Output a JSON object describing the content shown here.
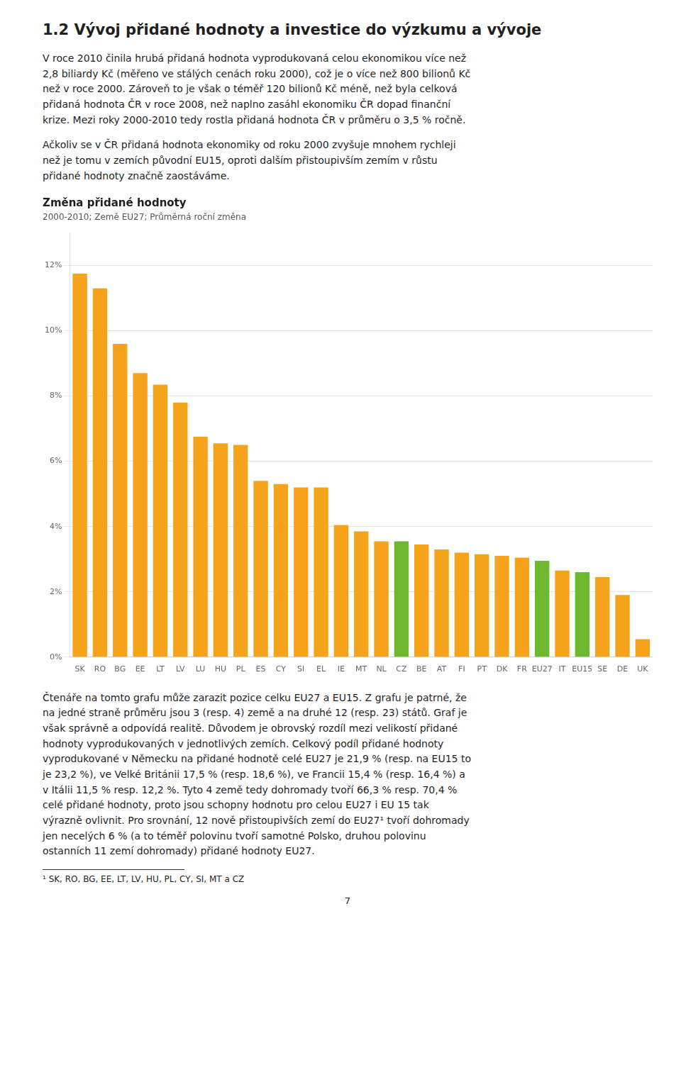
{
  "heading": "1.2 Vývoj přidané hodnoty a investice do výzkumu a vývoje",
  "para1": "V roce 2010 činila hrubá přidaná hodnota vyprodukovaná celou ekonomikou více než\n2,8 biliardy Kč (měřeno ve stálých cenách roku 2000), což je o více než 800 bilionů Kč\nnež v roce 2000. Zároveň to je však o téměř 120 bilionů Kč méně, než byla celková\npřidaná hodnota ČR v roce 2008, než naplno zasáhl ekonomiku ČR dopad finanční\nkrize. Mezi roky 2000-2010 tedy rostla přidaná hodnota ČR v průměru o 3,5 % ročně.",
  "para2": "Ačkoliv se v ČR přidaná hodnota ekonomiky od roku 2000 zvyšuje mnohem rychleji\nnež je tomu v zemích původní EU15, oproti dalším přistoupivším zemím v růstu\npřidané hodnoty značně zaostáváme.",
  "para3": "Čtenáře na tomto grafu může zarazit pozice celku EU27 a EU15. Z grafu je patrné, že\nna jedné straně průměru jsou 3 (resp. 4) země a na druhé 12 (resp. 23) států. Graf je\nvšak správně a odpovídá realitě. Důvodem je obrovský rozdíl mezi velikostí přidané\nhodnoty vyprodukovaných v jednotlivých zemích. Celkový podíl přidané hodnoty\nvyprodukované v Německu na přidané hodnotě celé EU27 je 21,9 % (resp. na EU15 to\nje 23,2 %), ve Velké Británii 17,5 % (resp. 18,6 %), ve Francii 15,4 % (resp. 16,4 %) a\nv Itálii 11,5 % resp. 12,2 %. Tyto 4 země tedy dohromady tvoří 66,3 % resp. 70,4 %\ncelé přidané hodnoty, proto jsou schopny hodnotu pro celou EU27 i EU 15 tak\nvýrazně ovlivnit. Pro srovnání, 12 nově přistoupivších zemí do EU27¹ tvoří dohromady\njen necelých 6 % (a to téměř polovinu tvoří samotné Polsko, druhou polovinu\nostanních 11 zemí dohromady) přidané hodnoty EU27.",
  "footnote": "¹ SK, RO, BG, EE, LT, LV, HU, PL, CY, SI, MT a CZ",
  "page_num": "7",
  "chart_data": {
    "type": "bar",
    "title": "Změna přidané hodnoty",
    "subtitle": "2000-2010; Země EU27; Průměrná roční změna",
    "categories": [
      "SK",
      "RO",
      "BG",
      "EE",
      "LT",
      "LV",
      "LU",
      "HU",
      "PL",
      "ES",
      "CY",
      "SI",
      "EL",
      "IE",
      "MT",
      "NL",
      "CZ",
      "BE",
      "AT",
      "FI",
      "PT",
      "DK",
      "FR",
      "EU27",
      "IT",
      "EU15",
      "SE",
      "DE",
      "UK"
    ],
    "values": [
      0.1175,
      0.113,
      0.096,
      0.087,
      0.0835,
      0.078,
      0.0675,
      0.0655,
      0.065,
      0.054,
      0.053,
      0.052,
      0.052,
      0.0405,
      0.0385,
      0.0355,
      0.0355,
      0.0345,
      0.033,
      0.032,
      0.0315,
      0.031,
      0.0305,
      0.0295,
      0.0265,
      0.026,
      0.0245,
      0.019,
      0.0055
    ],
    "colors": [
      "#F5A31A",
      "#F5A31A",
      "#F5A31A",
      "#F5A31A",
      "#F5A31A",
      "#F5A31A",
      "#F5A31A",
      "#F5A31A",
      "#F5A31A",
      "#F5A31A",
      "#F5A31A",
      "#F5A31A",
      "#F5A31A",
      "#F5A31A",
      "#F5A31A",
      "#F5A31A",
      "#6DB82E",
      "#F5A31A",
      "#F5A31A",
      "#F5A31A",
      "#F5A31A",
      "#F5A31A",
      "#F5A31A",
      "#6DB82E",
      "#F5A31A",
      "#6DB82E",
      "#F5A31A",
      "#F5A31A",
      "#F5A31A"
    ],
    "ylim": [
      0,
      0.13
    ],
    "yticks": [
      {
        "value": 0,
        "label": "0%"
      },
      {
        "value": 0.02,
        "label": "2%"
      },
      {
        "value": 0.04,
        "label": "4%"
      },
      {
        "value": 0.06,
        "label": "6%"
      },
      {
        "value": 0.08,
        "label": "8%"
      },
      {
        "value": 0.1,
        "label": "10%"
      },
      {
        "value": 0.12,
        "label": "12%"
      }
    ],
    "grid": true
  }
}
